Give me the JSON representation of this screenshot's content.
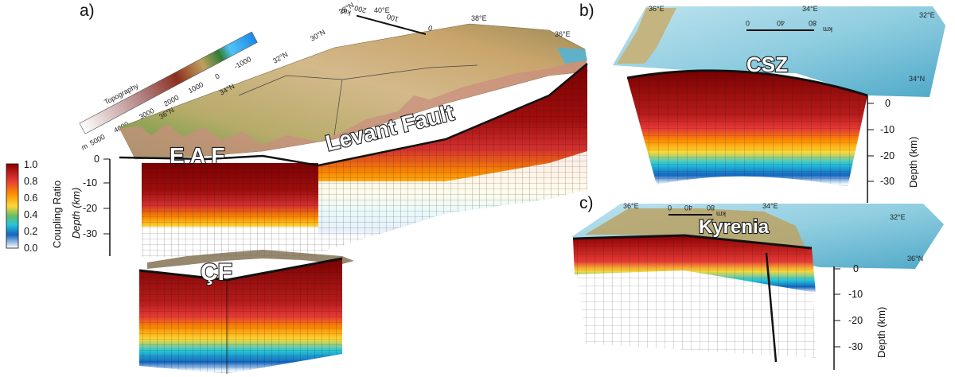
{
  "panels": [
    {
      "id": "a",
      "letter": "a)"
    },
    {
      "id": "b",
      "letter": "b)"
    },
    {
      "id": "c",
      "letter": "c)"
    }
  ],
  "faults": {
    "eaf": "E A F",
    "levant": "Levant Fault",
    "cf": "ÇF",
    "csz": "CSZ",
    "kyrenia": "Kyrenia"
  },
  "coupling_colorbar": {
    "label": "Coupling Ratio",
    "ticks": [
      "1.0",
      "0.8",
      "0.6",
      "0.4",
      "0.2",
      "0.0"
    ],
    "colors": [
      "#8b0000",
      "#d7191c",
      "#f46d43",
      "#fdae61",
      "#fee08b",
      "#a6d96a",
      "#1a9850",
      "#00bcd4",
      "#1565c0",
      "#ffffff"
    ]
  },
  "topo_colorbar": {
    "label": "Topography",
    "unit": "m",
    "ticks": [
      "-1000",
      "0",
      "1000",
      "2000",
      "3000",
      "4000",
      "5000"
    ]
  },
  "panel_a": {
    "depth_label": "Depth (km)",
    "depth_ticks": [
      "0",
      "-10",
      "-20",
      "-30"
    ],
    "lat_labels": [
      "28°N",
      "30°N",
      "32°N",
      "34°N",
      "36°N"
    ],
    "lon_labels": [
      "40°E",
      "38°E",
      "36°E"
    ],
    "scale_ticks": [
      "0",
      "100",
      "200"
    ],
    "scale_unit": "km"
  },
  "panel_b": {
    "depth_label": "Depth (km)",
    "depth_ticks": [
      "0",
      "-10",
      "-20",
      "-30"
    ],
    "lon_labels": [
      "36°E",
      "34°E",
      "32°E"
    ],
    "lat_labels": [
      "34°N"
    ],
    "scale_ticks": [
      "0",
      "40",
      "80"
    ],
    "scale_unit": "km"
  },
  "panel_c": {
    "depth_label": "Depth (km)",
    "depth_ticks": [
      "0",
      "-10",
      "-20",
      "-30"
    ],
    "lon_labels": [
      "36°E",
      "34°E",
      "32°E"
    ],
    "lat_labels": [
      "36°N"
    ],
    "scale_ticks": [
      "0",
      "40",
      "80"
    ],
    "scale_unit": "km"
  }
}
